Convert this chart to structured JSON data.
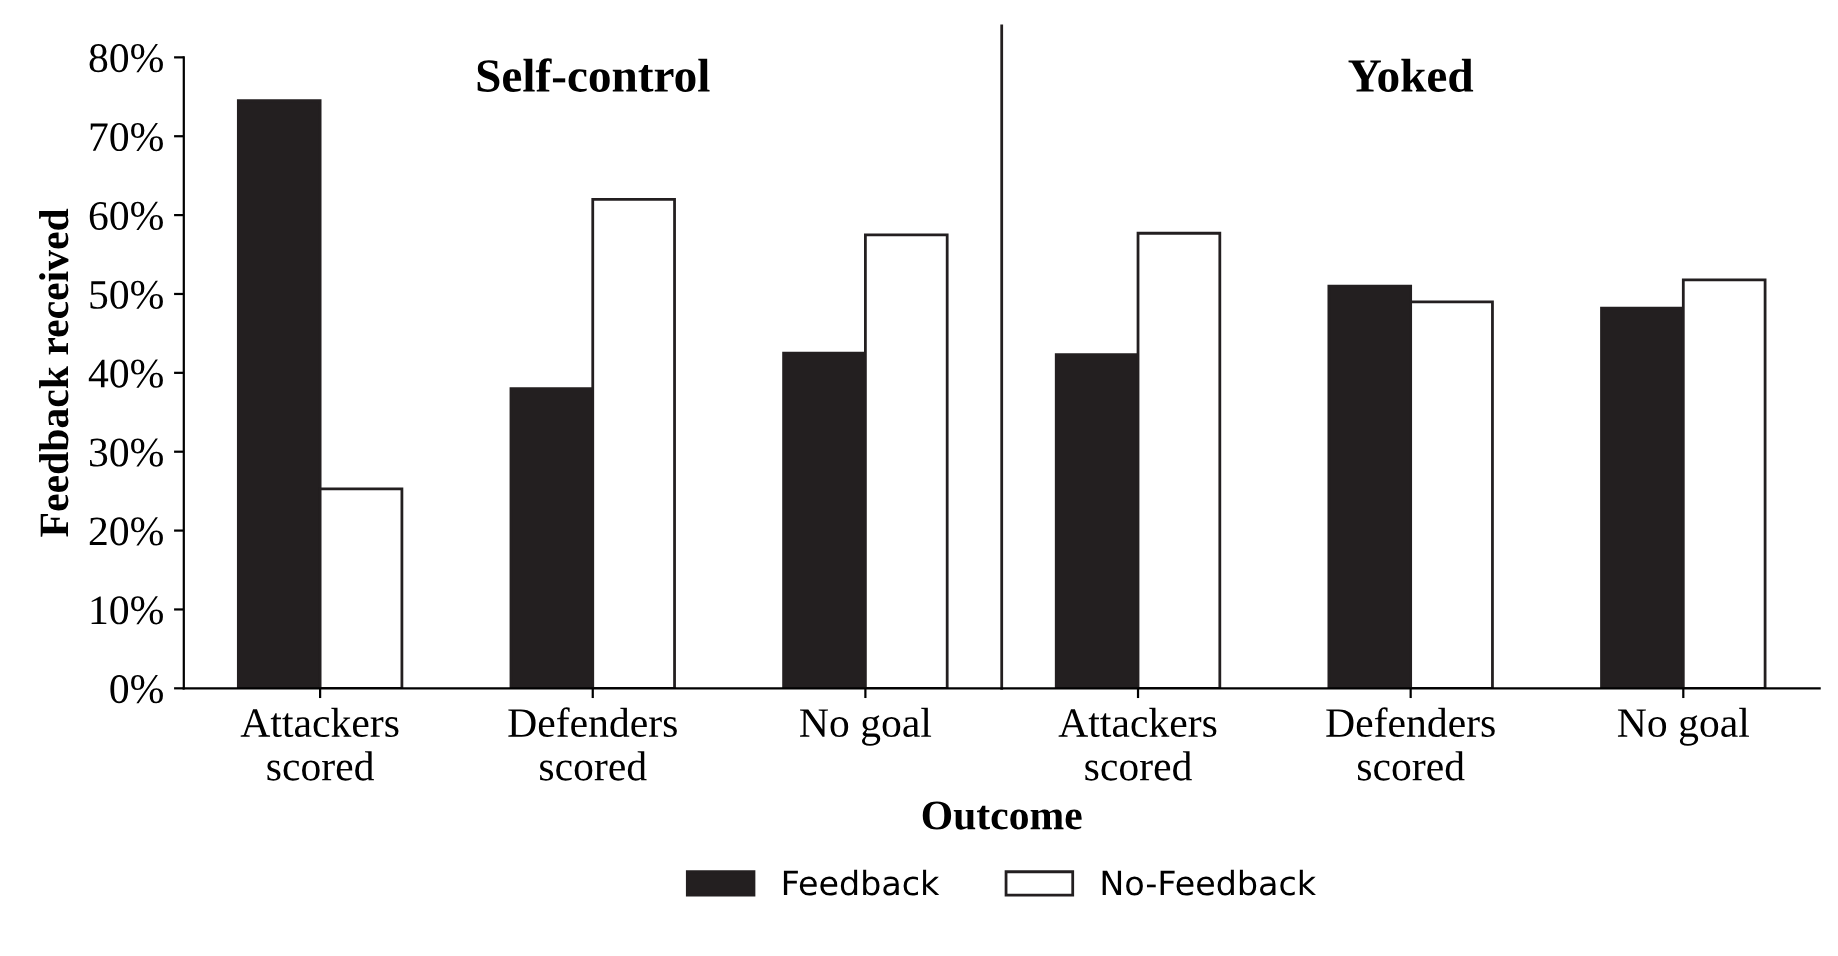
{
  "chart_data": {
    "type": "bar",
    "xlabel": "Outcome",
    "ylabel": "Feedback received",
    "categories": [
      "Attackers\nscored",
      "Defenders\nscored",
      "No goal",
      "Attackers\nscored",
      "Defenders\nscored",
      "No goal"
    ],
    "series": [
      {
        "name": "Feedback",
        "color": "#231f20",
        "values": [
          74.5,
          38,
          42.5,
          42.3,
          51,
          48.2
        ]
      },
      {
        "name": "No-Feedback",
        "color": "#ffffff",
        "values": [
          25.3,
          62,
          57.5,
          57.7,
          49,
          51.8
        ]
      }
    ],
    "annotations": [
      "Self-control",
      "Yoked"
    ],
    "ylim": [
      0,
      80
    ],
    "yticks": [
      {
        "value": 0,
        "label": "0%"
      },
      {
        "value": 10,
        "label": "10%"
      },
      {
        "value": 20,
        "label": "20%"
      },
      {
        "value": 30,
        "label": "30%"
      },
      {
        "value": 40,
        "label": "40%"
      },
      {
        "value": 50,
        "label": "50%"
      },
      {
        "value": 60,
        "label": "60%"
      },
      {
        "value": 70,
        "label": "70%"
      },
      {
        "value": 80,
        "label": "80%"
      }
    ],
    "grid": false,
    "legend": "bottom"
  }
}
